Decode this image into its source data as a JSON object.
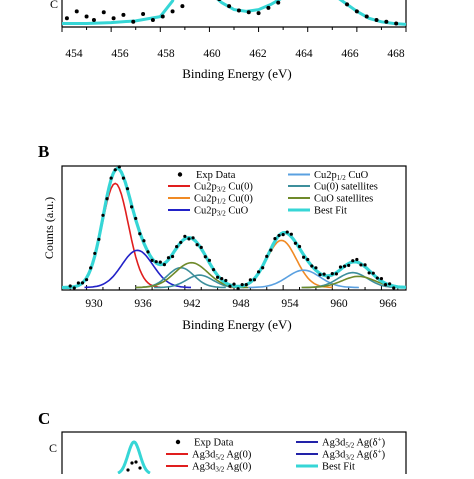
{
  "panels": {
    "A": {
      "xticks": [
        "454",
        "456",
        "458",
        "460",
        "462",
        "464",
        "466",
        "468"
      ],
      "xlabel": "Binding Energy (eV)",
      "ylabel_fragment": "C"
    },
    "B": {
      "label": "B",
      "xticks": [
        "930",
        "936",
        "942",
        "948",
        "954",
        "960",
        "966"
      ],
      "xlabel": "Binding Energy (eV)",
      "ylabel": "Counts (a.u.)",
      "legend": [
        "Exp Data",
        "Cu2p3/2 Cu(0)",
        "Cu2p1/2 Cu(0)",
        "Cu2p3/2 CuO",
        "Cu2p1/2 CuO",
        "Cu(0) satellites",
        "CuO satellites",
        "Best Fit"
      ]
    },
    "C": {
      "label": "C",
      "ylabel_fragment": "C",
      "legend": [
        "Exp Data",
        "Ag3d5/2 Ag(0)",
        "Ag3d3/2 Ag(0)",
        "Ag3d5/2 Ag(δ+)",
        "Ag3d3/2 Ag(δ+)",
        "Best Fit"
      ]
    }
  },
  "colors": {
    "exp": "#000000",
    "best_fit": "#36d6d6",
    "cu0_32": "#e01e1e",
    "cu0_12": "#f08a24",
    "cuo_32": "#2222c8",
    "cuo_12": "#5aa0e0",
    "cu0_sat": "#3d8f9c",
    "cuo_sat": "#6f8a2a",
    "ag0": "#e01e1e",
    "agd": "#2222a8"
  },
  "chart_data": [
    {
      "panel": "A",
      "type": "scatter",
      "xlabel": "Binding Energy (eV)",
      "xlim": [
        454,
        468
      ],
      "series": [
        {
          "role": "exp",
          "marker": "dot",
          "x": [
            454.2,
            454.6,
            455.0,
            455.3,
            455.7,
            456.1,
            456.5,
            456.9,
            457.3,
            457.7,
            458.1,
            458.5,
            458.9,
            460.0,
            460.4,
            460.8,
            461.2,
            461.6,
            462.0,
            462.4,
            462.8,
            463.2,
            463.6,
            464.0,
            464.4,
            464.8,
            465.2,
            465.6,
            466.0,
            466.4,
            466.8,
            467.2,
            467.6
          ],
          "y": [
            0.1,
            0.18,
            0.12,
            0.08,
            0.17,
            0.1,
            0.14,
            0.06,
            0.15,
            0.08,
            0.12,
            0.18,
            0.24,
            0.42,
            0.32,
            0.24,
            0.19,
            0.17,
            0.16,
            0.22,
            0.28,
            0.36,
            0.44,
            0.46,
            0.44,
            0.38,
            0.34,
            0.26,
            0.18,
            0.12,
            0.08,
            0.06,
            0.04
          ]
        },
        {
          "role": "fit",
          "x": [
            454,
            455,
            456,
            457,
            458,
            458.5,
            458.8,
            459.2,
            460,
            460.5,
            461,
            461.5,
            462,
            462.5,
            463,
            463.5,
            464,
            464.5,
            465,
            465.5,
            466,
            466.5,
            467,
            467.5,
            468
          ],
          "y": [
            0.04,
            0.04,
            0.05,
            0.07,
            0.12,
            0.3,
            0.6,
            0.95,
            0.4,
            0.28,
            0.2,
            0.18,
            0.2,
            0.26,
            0.34,
            0.42,
            0.46,
            0.44,
            0.38,
            0.28,
            0.18,
            0.1,
            0.06,
            0.04,
            0.03
          ]
        }
      ]
    },
    {
      "panel": "B",
      "type": "line",
      "title": "",
      "xlabel": "Binding Energy (eV)",
      "ylabel": "Counts (a.u.)",
      "xlim": [
        927,
        969
      ],
      "ylim": [
        0,
        1.0
      ],
      "legend_entries": [
        "Exp Data",
        "Cu2p3/2 Cu(0)",
        "Cu2p1/2 Cu(0)",
        "Cu2p3/2 CuO",
        "Cu2p1/2 CuO",
        "Cu(0) satellites",
        "CuO satellites",
        "Best Fit"
      ],
      "peaks": [
        {
          "name": "Cu2p3/2 Cu(0)",
          "color_key": "cu0_32",
          "components": [
            [
              933.5,
              1.6,
              0.84
            ]
          ]
        },
        {
          "name": "Cu2p1/2 Cu(0)",
          "color_key": "cu0_12",
          "components": [
            [
              953.8,
              1.8,
              0.38
            ]
          ]
        },
        {
          "name": "Cu2p3/2 CuO",
          "color_key": "cuo_32",
          "components": [
            [
              936.2,
              1.9,
              0.3
            ]
          ]
        },
        {
          "name": "Cu2p1/2 CuO",
          "color_key": "cuo_12",
          "components": [
            [
              956.5,
              2.0,
              0.14
            ]
          ]
        },
        {
          "name": "Cu(0) satellites",
          "color_key": "cu0_sat",
          "components": [
            [
              941.5,
              1.6,
              0.16
            ],
            [
              943.8,
              1.6,
              0.1
            ],
            [
              962.5,
              1.8,
              0.12
            ]
          ]
        },
        {
          "name": "CuO satellites",
          "color_key": "cuo_sat",
          "components": [
            [
              942.8,
              2.0,
              0.2
            ],
            [
              963.2,
              2.0,
              0.09
            ]
          ]
        }
      ],
      "baseline": 0.02,
      "exp_points": {
        "x_start": 928,
        "x_step": 0.5,
        "count": 80,
        "noise": [
          0.01,
          -0.01,
          0.02,
          0.0,
          -0.015,
          0.01,
          0.02,
          -0.01,
          0.015,
          -0.02,
          0.01,
          0.0,
          0.02,
          -0.01,
          0.01,
          -0.015
        ]
      }
    },
    {
      "panel": "C",
      "type": "line",
      "legend_entries": [
        "Exp Data",
        "Ag3d5/2 Ag(0)",
        "Ag3d3/2 Ag(0)",
        "Ag3d5/2 Ag(δ+)",
        "Ag3d3/2 Ag(δ+)",
        "Best Fit"
      ]
    }
  ]
}
